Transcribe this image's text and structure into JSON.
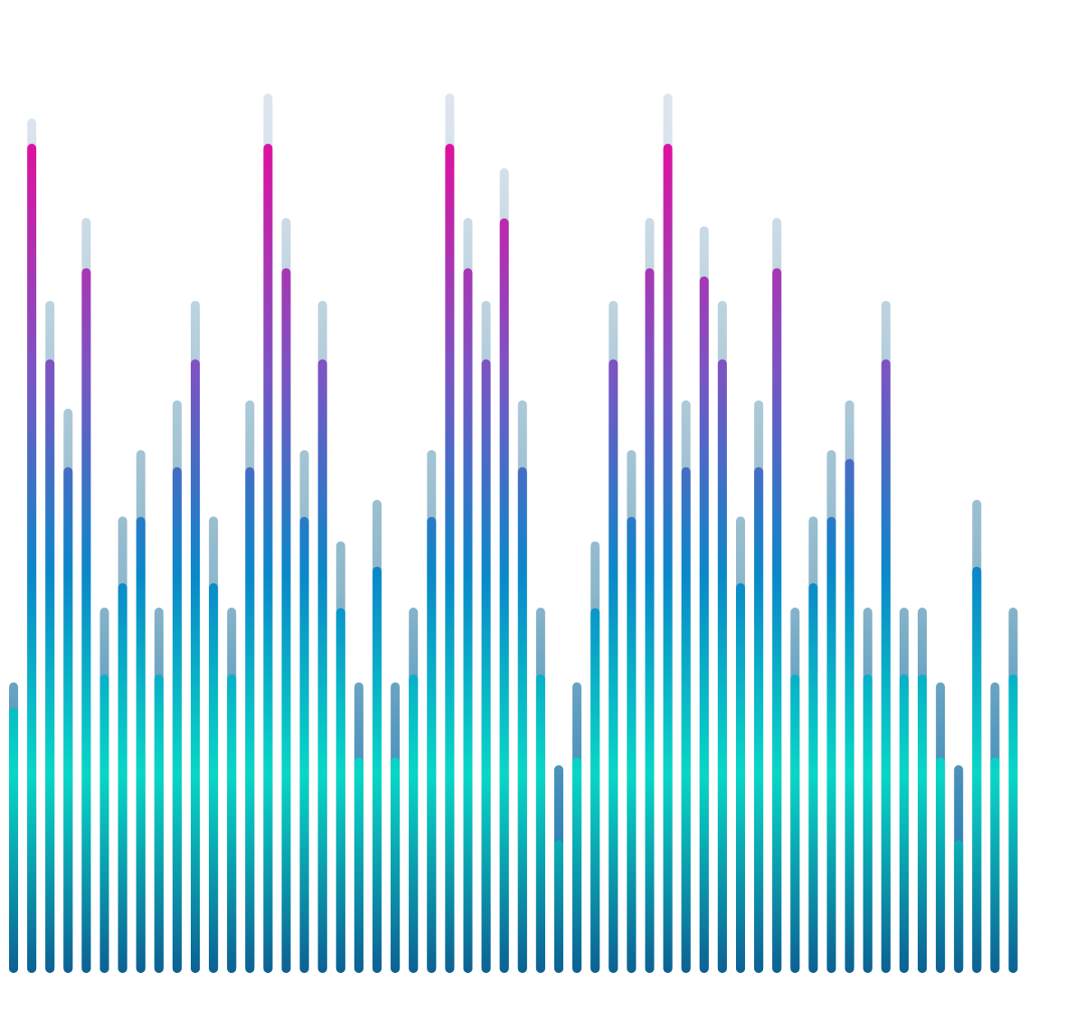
{
  "visualizer": {
    "levels": [
      0.32,
      1.0,
      0.74,
      0.61,
      0.85,
      0.36,
      0.47,
      0.55,
      0.36,
      0.61,
      0.74,
      0.47,
      0.36,
      0.61,
      1.0,
      0.85,
      0.55,
      0.74,
      0.44,
      0.26,
      0.49,
      0.26,
      0.36,
      0.55,
      1.0,
      0.85,
      0.74,
      0.91,
      0.61,
      0.36,
      0.16,
      0.26,
      0.44,
      0.74,
      0.55,
      0.85,
      1.0,
      0.61,
      0.84,
      0.74,
      0.47,
      0.61,
      0.85,
      0.36,
      0.47,
      0.55,
      0.62,
      0.36,
      0.74,
      0.36,
      0.36,
      0.26,
      0.16,
      0.49,
      0.26,
      0.36
    ],
    "peaks": [
      0.32,
      1.0,
      0.78,
      0.65,
      0.88,
      0.41,
      0.52,
      0.6,
      0.41,
      0.66,
      0.78,
      0.52,
      0.41,
      0.66,
      1.03,
      0.88,
      0.6,
      0.78,
      0.49,
      0.32,
      0.54,
      0.32,
      0.41,
      0.6,
      1.03,
      0.88,
      0.78,
      0.94,
      0.66,
      0.41,
      0.22,
      0.32,
      0.49,
      0.78,
      0.6,
      0.88,
      1.03,
      0.66,
      0.87,
      0.78,
      0.52,
      0.66,
      0.88,
      0.41,
      0.52,
      0.6,
      0.66,
      0.41,
      0.78,
      0.41,
      0.41,
      0.32,
      0.22,
      0.54,
      0.32,
      0.41
    ],
    "colors": {
      "top": "#e0109f",
      "upper_mid": "#7a55c4",
      "mid": "#0a88c8",
      "lower_mid": "#08d7c6",
      "bottom": "#0d5f93",
      "peak_cap": "#dce5ee"
    }
  }
}
